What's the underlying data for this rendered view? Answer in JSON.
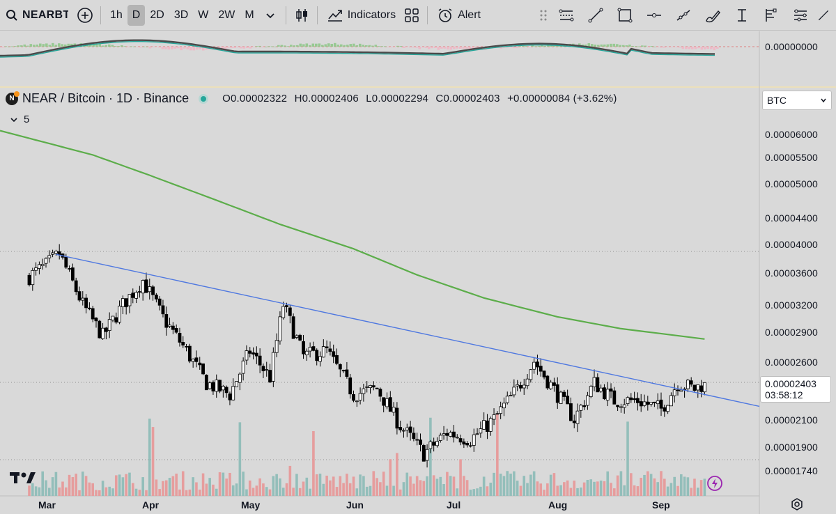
{
  "toolbar": {
    "symbol": "NEARBT",
    "intervals": [
      "1h",
      "D",
      "2D",
      "3D",
      "W",
      "2W",
      "M"
    ],
    "active_interval": "D",
    "indicators_label": "Indicators",
    "alert_label": "Alert"
  },
  "legend": {
    "title": "NEAR / Bitcoin · 1D · Binance",
    "open": "O0.00002322",
    "high": "H0.00002406",
    "low": "L0.00002294",
    "close": "C0.00002403",
    "change": "+0.00000084 (+3.62%)",
    "collapse_count": "5"
  },
  "currency": "BTC",
  "price_axis": {
    "oscillator_zero": "0.00000000",
    "labels": [
      "0.00006000",
      "0.00005500",
      "0.00005000",
      "0.00004400",
      "0.00004000",
      "0.00003600",
      "0.00003200",
      "0.00002900",
      "0.00002600",
      "0.00002100",
      "0.00001900",
      "0.00001740"
    ],
    "current_price": "0.00002403",
    "countdown": "03:58:12"
  },
  "time_axis": [
    "Mar",
    "Apr",
    "May",
    "Jun",
    "Jul",
    "Aug",
    "Sep"
  ],
  "colors": {
    "background": "#d9d9d9",
    "ma_line": "#5cad4a",
    "trend_line": "#4f78e0",
    "candle_up": "#ffffff",
    "candle_down": "#000000",
    "volume_up": "#8fbdb8",
    "volume_down": "#e79a9a"
  },
  "chart_data": {
    "type": "candlestick",
    "title": "NEAR / Bitcoin · 1D · Binance",
    "scale": "log",
    "ylim": [
      1.68e-05,
      6.25e-05
    ],
    "x": [
      "Mar",
      "Apr",
      "May",
      "Jun",
      "Jul",
      "Aug",
      "Sep"
    ],
    "close_path": [
      {
        "date": "Feb 24",
        "close": 3.55e-05
      },
      {
        "date": "Mar 1",
        "close": 3.7e-05
      },
      {
        "date": "Mar 5",
        "close": 3.86e-05
      },
      {
        "date": "Mar 12",
        "close": 3.2e-05
      },
      {
        "date": "Mar 18",
        "close": 2.85e-05
      },
      {
        "date": "Mar 24",
        "close": 3.2e-05
      },
      {
        "date": "Mar 30",
        "close": 3.5e-05
      },
      {
        "date": "Apr 5",
        "close": 3.05e-05
      },
      {
        "date": "Apr 12",
        "close": 2.7e-05
      },
      {
        "date": "Apr 18",
        "close": 2.4e-05
      },
      {
        "date": "Apr 25",
        "close": 2.3e-05
      },
      {
        "date": "May 1",
        "close": 2.7e-05
      },
      {
        "date": "May 7",
        "close": 2.45e-05
      },
      {
        "date": "May 11",
        "close": 3.2e-05
      },
      {
        "date": "May 17",
        "close": 2.65e-05
      },
      {
        "date": "May 24",
        "close": 2.7e-05
      },
      {
        "date": "Jun 1",
        "close": 2.3e-05
      },
      {
        "date": "Jun 8",
        "close": 2.35e-05
      },
      {
        "date": "Jun 15",
        "close": 2.05e-05
      },
      {
        "date": "Jun 22",
        "close": 1.85e-05
      },
      {
        "date": "Jun 29",
        "close": 2e-05
      },
      {
        "date": "Jul 6",
        "close": 1.95e-05
      },
      {
        "date": "Jul 13",
        "close": 2.1e-05
      },
      {
        "date": "Jul 20",
        "close": 2.35e-05
      },
      {
        "date": "Jul 25",
        "close": 2.6e-05
      },
      {
        "date": "Aug 1",
        "close": 2.3e-05
      },
      {
        "date": "Aug 6",
        "close": 2.1e-05
      },
      {
        "date": "Aug 12",
        "close": 2.4e-05
      },
      {
        "date": "Aug 18",
        "close": 2.25e-05
      },
      {
        "date": "Aug 25",
        "close": 2.25e-05
      },
      {
        "date": "Sep 1",
        "close": 2.18e-05
      },
      {
        "date": "Sep 6",
        "close": 2.4e-05
      },
      {
        "date": "Sep 11",
        "close": 2.35e-05
      },
      {
        "date": "Sep 14",
        "close": 2.4e-05
      }
    ],
    "series": [
      {
        "name": "",
        "type": "line",
        "points": [
          {
            "date": "Feb 24",
            "value": 5.9e-05
          },
          {
            "date": "Mar 15",
            "value": 5.55e-05
          },
          {
            "date": "Apr 1",
            "value": 5.15e-05
          },
          {
            "date": "Apr 20",
            "value": 4.72e-05
          },
          {
            "date": "May 10",
            "value": 4.3e-05
          },
          {
            "date": "Jun 1",
            "value": 3.93e-05
          },
          {
            "date": "Jun 20",
            "value": 3.57e-05
          },
          {
            "date": "Jul 10",
            "value": 3.28e-05
          },
          {
            "date": "Aug 1",
            "value": 3.06e-05
          },
          {
            "date": "Aug 20",
            "value": 2.93e-05
          },
          {
            "date": "Sep 14",
            "value": 2.82e-05
          }
        ]
      },
      {
        "name": "",
        "type": "trendline",
        "points": [
          {
            "date": "Mar 4",
            "value": 3.85e-05
          },
          {
            "date": "Sep 14",
            "value": 2.3e-05
          }
        ]
      }
    ],
    "volume_visible": true,
    "oscillator_panel": true
  }
}
